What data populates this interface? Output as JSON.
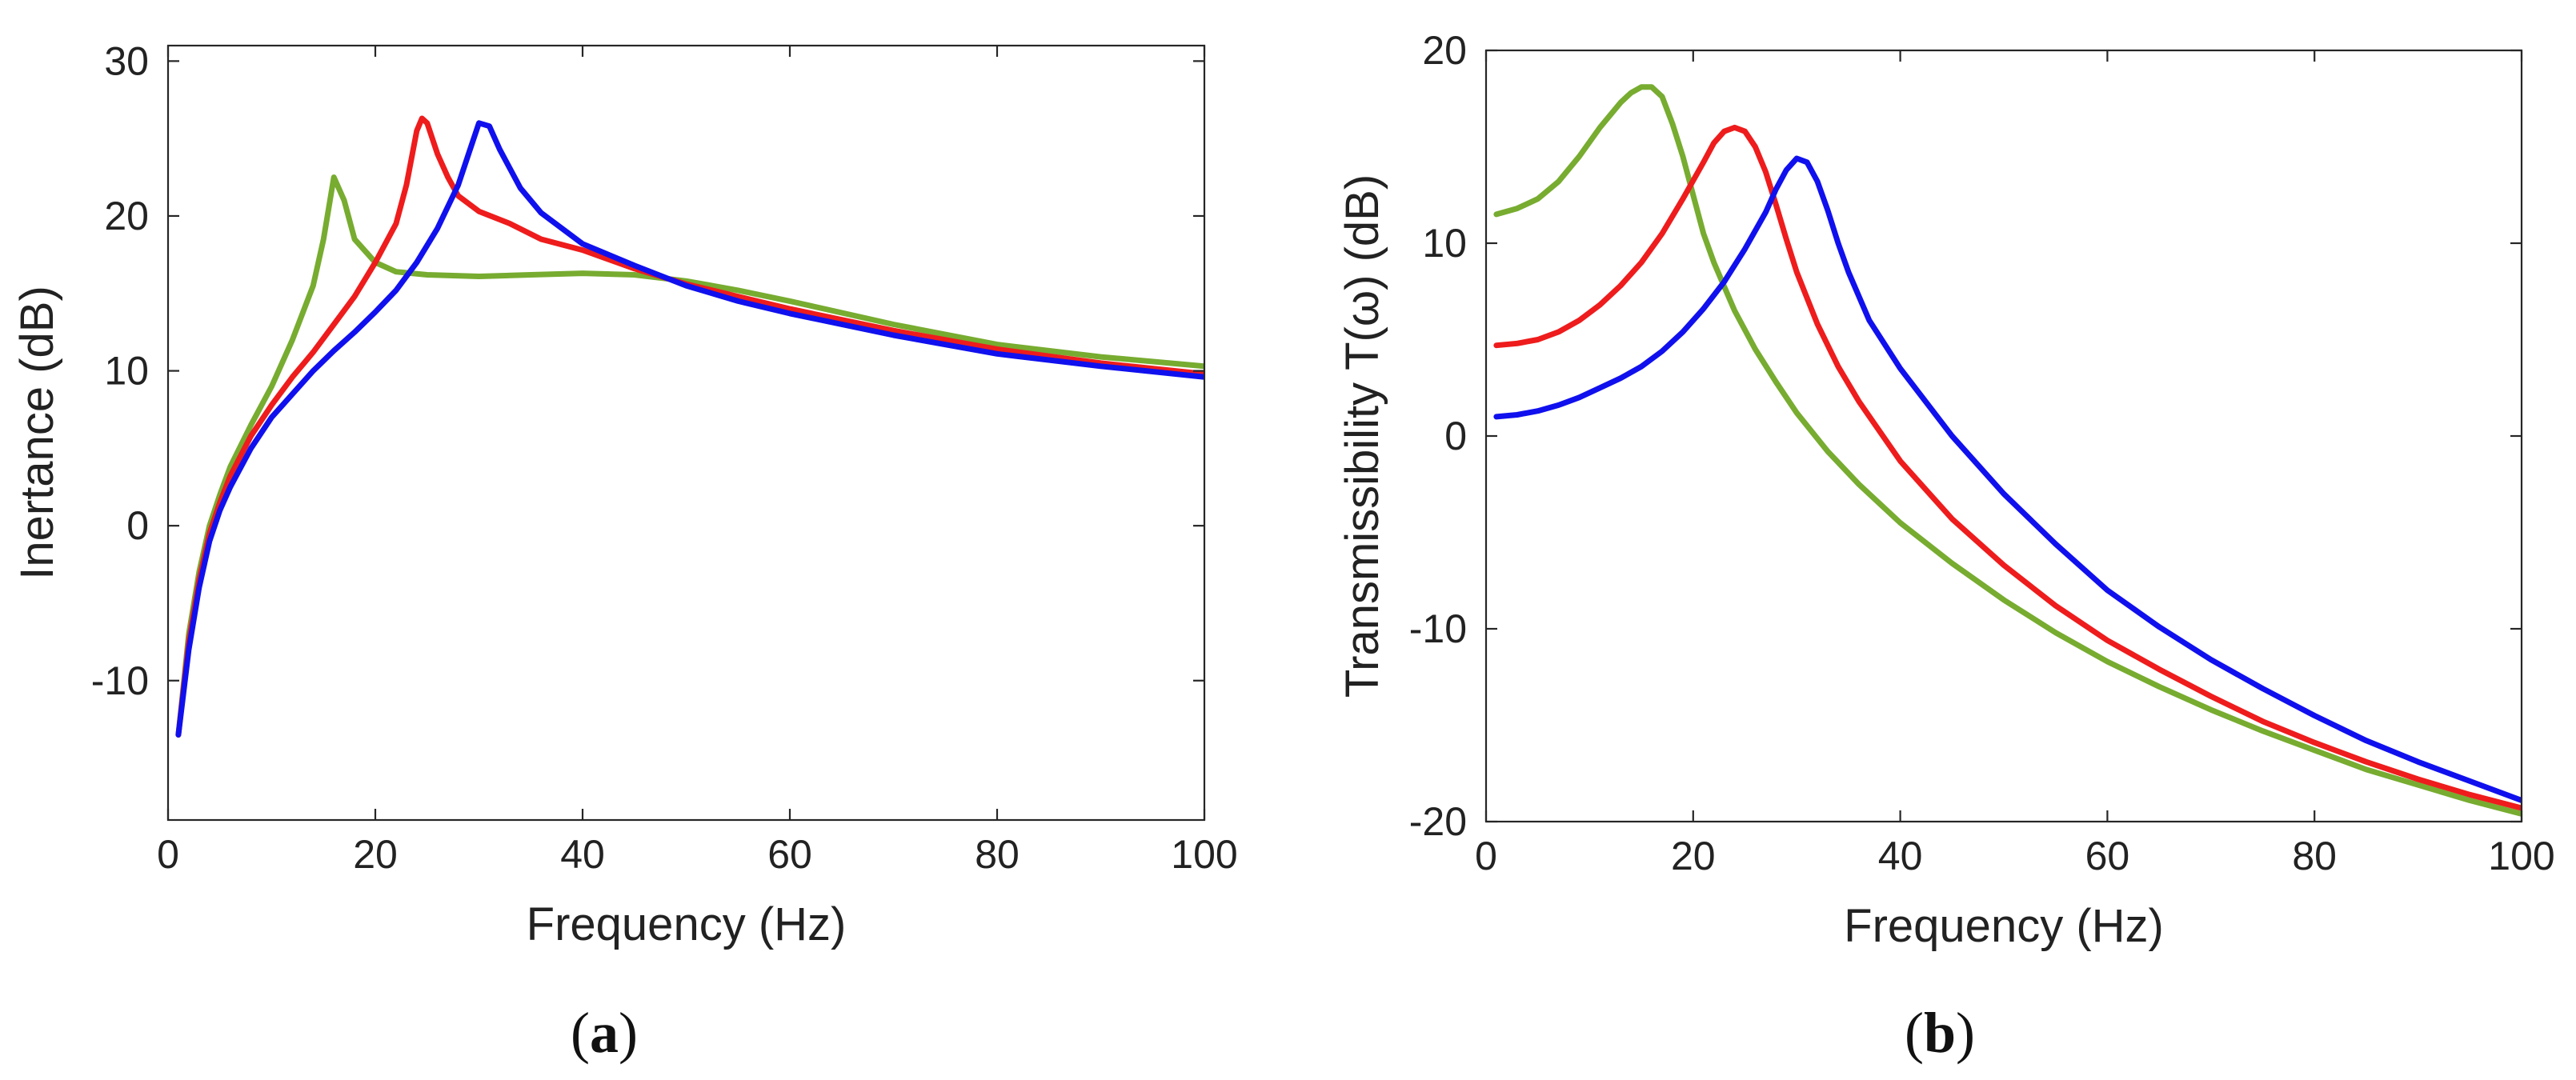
{
  "chart_data": [
    {
      "type": "line",
      "panel_label": "a",
      "xlabel": "Frequency (Hz)",
      "ylabel": "Inertance (dB)",
      "xlim": [
        0,
        100
      ],
      "ylim": [
        -19,
        31
      ],
      "xticks": [
        0,
        20,
        40,
        60,
        80,
        100
      ],
      "yticks": [
        -10,
        0,
        10,
        20,
        30
      ],
      "series": [
        {
          "name": "green",
          "color": "#77ac30",
          "points": [
            [
              1,
              -13.5
            ],
            [
              2,
              -7
            ],
            [
              3,
              -3
            ],
            [
              4,
              0
            ],
            [
              5,
              2
            ],
            [
              6,
              3.8
            ],
            [
              8,
              6.5
            ],
            [
              10,
              9
            ],
            [
              12,
              12
            ],
            [
              14,
              15.5
            ],
            [
              15,
              18.5
            ],
            [
              16,
              22.5
            ],
            [
              17,
              21
            ],
            [
              18,
              18.5
            ],
            [
              20,
              17
            ],
            [
              22,
              16.4
            ],
            [
              25,
              16.2
            ],
            [
              30,
              16.1
            ],
            [
              35,
              16.2
            ],
            [
              40,
              16.3
            ],
            [
              45,
              16.2
            ],
            [
              50,
              15.8
            ],
            [
              55,
              15.2
            ],
            [
              60,
              14.5
            ],
            [
              70,
              13
            ],
            [
              80,
              11.7
            ],
            [
              90,
              10.9
            ],
            [
              100,
              10.3
            ]
          ]
        },
        {
          "name": "red",
          "color": "#ee1c1c",
          "points": [
            [
              1,
              -13.5
            ],
            [
              2,
              -7.5
            ],
            [
              3,
              -3.5
            ],
            [
              4,
              -0.5
            ],
            [
              5,
              1.5
            ],
            [
              6,
              3.2
            ],
            [
              8,
              5.8
            ],
            [
              10,
              7.8
            ],
            [
              12,
              9.6
            ],
            [
              14,
              11.2
            ],
            [
              16,
              13
            ],
            [
              18,
              14.8
            ],
            [
              20,
              17
            ],
            [
              22,
              19.5
            ],
            [
              23,
              22
            ],
            [
              24,
              25.5
            ],
            [
              24.5,
              26.3
            ],
            [
              25,
              26
            ],
            [
              26,
              24
            ],
            [
              27,
              22.5
            ],
            [
              28,
              21.3
            ],
            [
              30,
              20.3
            ],
            [
              33,
              19.5
            ],
            [
              36,
              18.5
            ],
            [
              40,
              17.8
            ],
            [
              45,
              16.6
            ],
            [
              50,
              15.6
            ],
            [
              55,
              14.8
            ],
            [
              60,
              14
            ],
            [
              70,
              12.6
            ],
            [
              80,
              11.4
            ],
            [
              90,
              10.5
            ],
            [
              100,
              9.8
            ]
          ]
        },
        {
          "name": "blue",
          "color": "#1010ee",
          "points": [
            [
              1,
              -13.5
            ],
            [
              2,
              -8
            ],
            [
              3,
              -4
            ],
            [
              4,
              -1
            ],
            [
              5,
              1
            ],
            [
              6,
              2.5
            ],
            [
              8,
              5
            ],
            [
              10,
              7
            ],
            [
              12,
              8.5
            ],
            [
              14,
              10
            ],
            [
              16,
              11.3
            ],
            [
              18,
              12.5
            ],
            [
              20,
              13.8
            ],
            [
              22,
              15.2
            ],
            [
              24,
              17
            ],
            [
              26,
              19.2
            ],
            [
              28,
              22
            ],
            [
              29,
              24
            ],
            [
              30,
              26
            ],
            [
              31,
              25.8
            ],
            [
              32,
              24.3
            ],
            [
              34,
              21.8
            ],
            [
              36,
              20.2
            ],
            [
              40,
              18.2
            ],
            [
              45,
              16.8
            ],
            [
              50,
              15.5
            ],
            [
              55,
              14.5
            ],
            [
              60,
              13.7
            ],
            [
              70,
              12.3
            ],
            [
              80,
              11.1
            ],
            [
              90,
              10.3
            ],
            [
              100,
              9.6
            ]
          ]
        }
      ]
    },
    {
      "type": "line",
      "panel_label": "b",
      "xlabel": "Frequency (Hz)",
      "ylabel": "Transmissibility T(ω) (dB)",
      "xlim": [
        0,
        100
      ],
      "ylim": [
        -20,
        20
      ],
      "xticks": [
        0,
        20,
        40,
        60,
        80,
        100
      ],
      "yticks": [
        -20,
        -10,
        0,
        10,
        20
      ],
      "series": [
        {
          "name": "green",
          "color": "#77ac30",
          "points": [
            [
              1,
              11.5
            ],
            [
              3,
              11.8
            ],
            [
              5,
              12.3
            ],
            [
              7,
              13.2
            ],
            [
              9,
              14.5
            ],
            [
              11,
              16
            ],
            [
              13,
              17.3
            ],
            [
              14,
              17.8
            ],
            [
              15,
              18.1
            ],
            [
              16,
              18.1
            ],
            [
              17,
              17.6
            ],
            [
              18,
              16.2
            ],
            [
              19,
              14.5
            ],
            [
              20,
              12.5
            ],
            [
              21,
              10.5
            ],
            [
              22,
              9
            ],
            [
              24,
              6.5
            ],
            [
              26,
              4.5
            ],
            [
              28,
              2.8
            ],
            [
              30,
              1.2
            ],
            [
              33,
              -0.8
            ],
            [
              36,
              -2.5
            ],
            [
              40,
              -4.5
            ],
            [
              45,
              -6.6
            ],
            [
              50,
              -8.5
            ],
            [
              55,
              -10.2
            ],
            [
              60,
              -11.7
            ],
            [
              65,
              -13
            ],
            [
              70,
              -14.2
            ],
            [
              75,
              -15.3
            ],
            [
              80,
              -16.3
            ],
            [
              85,
              -17.3
            ],
            [
              90,
              -18.1
            ],
            [
              95,
              -18.9
            ],
            [
              100,
              -19.6
            ]
          ]
        },
        {
          "name": "red",
          "color": "#ee1c1c",
          "points": [
            [
              1,
              4.7
            ],
            [
              3,
              4.8
            ],
            [
              5,
              5
            ],
            [
              7,
              5.4
            ],
            [
              9,
              6
            ],
            [
              11,
              6.8
            ],
            [
              13,
              7.8
            ],
            [
              15,
              9
            ],
            [
              17,
              10.5
            ],
            [
              19,
              12.3
            ],
            [
              21,
              14.2
            ],
            [
              22,
              15.2
            ],
            [
              23,
              15.8
            ],
            [
              24,
              16
            ],
            [
              25,
              15.8
            ],
            [
              26,
              15
            ],
            [
              27,
              13.7
            ],
            [
              28,
              12
            ],
            [
              29,
              10.2
            ],
            [
              30,
              8.5
            ],
            [
              32,
              5.8
            ],
            [
              34,
              3.6
            ],
            [
              36,
              1.8
            ],
            [
              40,
              -1.3
            ],
            [
              45,
              -4.3
            ],
            [
              50,
              -6.7
            ],
            [
              55,
              -8.8
            ],
            [
              60,
              -10.6
            ],
            [
              65,
              -12.1
            ],
            [
              70,
              -13.5
            ],
            [
              75,
              -14.8
            ],
            [
              80,
              -15.9
            ],
            [
              85,
              -16.9
            ],
            [
              90,
              -17.8
            ],
            [
              95,
              -18.6
            ],
            [
              100,
              -19.3
            ]
          ]
        },
        {
          "name": "blue",
          "color": "#1010ee",
          "points": [
            [
              1,
              1
            ],
            [
              3,
              1.1
            ],
            [
              5,
              1.3
            ],
            [
              7,
              1.6
            ],
            [
              9,
              2
            ],
            [
              11,
              2.5
            ],
            [
              13,
              3
            ],
            [
              15,
              3.6
            ],
            [
              17,
              4.4
            ],
            [
              19,
              5.4
            ],
            [
              21,
              6.6
            ],
            [
              23,
              8
            ],
            [
              25,
              9.7
            ],
            [
              27,
              11.6
            ],
            [
              28,
              12.8
            ],
            [
              29,
              13.8
            ],
            [
              30,
              14.4
            ],
            [
              31,
              14.2
            ],
            [
              32,
              13.2
            ],
            [
              33,
              11.7
            ],
            [
              34,
              10
            ],
            [
              35,
              8.5
            ],
            [
              37,
              6
            ],
            [
              40,
              3.5
            ],
            [
              45,
              0
            ],
            [
              50,
              -3
            ],
            [
              55,
              -5.6
            ],
            [
              60,
              -8
            ],
            [
              65,
              -9.9
            ],
            [
              70,
              -11.6
            ],
            [
              75,
              -13.1
            ],
            [
              80,
              -14.5
            ],
            [
              85,
              -15.8
            ],
            [
              90,
              -16.9
            ],
            [
              95,
              -17.9
            ],
            [
              100,
              -18.9
            ]
          ]
        }
      ]
    }
  ]
}
